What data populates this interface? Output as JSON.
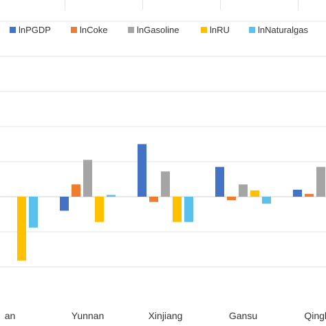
{
  "chart_data": {
    "type": "bar",
    "categories": [
      "an",
      "Yunnan",
      "Xinjiang",
      "Gansu",
      "Qinghai"
    ],
    "series": [
      {
        "name": "lnPGDP",
        "color": "#4472C4",
        "values": [
          null,
          -0.4,
          1.5,
          0.85,
          0.2
        ]
      },
      {
        "name": "lnCoke",
        "color": "#ED7D31",
        "values": [
          null,
          0.35,
          -0.15,
          -0.1,
          0.08
        ]
      },
      {
        "name": "lnGasoline",
        "color": "#A5A5A5",
        "values": [
          null,
          1.05,
          0.72,
          0.35,
          0.85
        ]
      },
      {
        "name": "lnRU",
        "color": "#FFC000",
        "values": [
          -1.82,
          -0.72,
          -0.72,
          0.18,
          -0.25
        ]
      },
      {
        "name": "lnNaturalgas",
        "color": "#5BC0EB",
        "values": [
          -0.88,
          0.05,
          -0.72,
          -0.2,
          -0.42
        ]
      }
    ],
    "ylim": [
      -2.5,
      5.5
    ],
    "grid": true,
    "legend": "top"
  }
}
